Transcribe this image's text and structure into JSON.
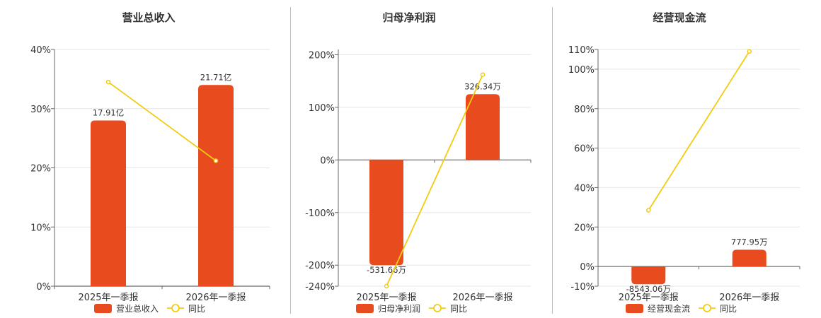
{
  "colors": {
    "bar": "#e84c1e",
    "line": "#f2cc12",
    "grid": "#e6e6e6",
    "axis": "#666666"
  },
  "chart_data": [
    {
      "type": "bar",
      "title": "营业总收入",
      "categories": [
        "2025年一季报",
        "2026年一季报"
      ],
      "series": [
        {
          "name": "营业总收入",
          "kind": "bar",
          "axis": "left",
          "values": [
            28,
            34
          ],
          "labels": [
            "17.91亿",
            "21.71亿"
          ]
        },
        {
          "name": "同比",
          "kind": "line",
          "axis": "left",
          "values": [
            34.5,
            21.2
          ]
        }
      ],
      "ylim": [
        0,
        40
      ],
      "yticks": [
        "0%",
        "10%",
        "20%",
        "30%",
        "40%"
      ],
      "yticks_values": [
        0,
        10,
        20,
        30,
        40
      ],
      "grid": true,
      "legend": [
        "营业总收入",
        "同比"
      ]
    },
    {
      "type": "bar",
      "title": "归母净利润",
      "categories": [
        "2025年一季报",
        "2026年一季报"
      ],
      "series": [
        {
          "name": "归母净利润",
          "kind": "bar",
          "axis": "left",
          "values": [
            -200,
            125
          ],
          "labels": [
            "-531.66万",
            "326.34万"
          ]
        },
        {
          "name": "同比",
          "kind": "line",
          "axis": "left",
          "values": [
            -240,
            162
          ]
        }
      ],
      "ylim": [
        -240,
        210
      ],
      "yticks": [
        "-240%",
        "-200%",
        "-100%",
        "0%",
        "100%",
        "200%"
      ],
      "yticks_values": [
        -240,
        -200,
        -100,
        0,
        100,
        200
      ],
      "grid": true,
      "legend": [
        "归母净利润",
        "同比"
      ]
    },
    {
      "type": "bar",
      "title": "经营现金流",
      "categories": [
        "2025年一季报",
        "2026年一季报"
      ],
      "series": [
        {
          "name": "经营现金流",
          "kind": "bar",
          "axis": "left",
          "values": [
            -9,
            8.5
          ],
          "labels": [
            "-8543.06万",
            "777.95万"
          ]
        },
        {
          "name": "同比",
          "kind": "line",
          "axis": "left",
          "values": [
            28.5,
            109
          ]
        }
      ],
      "ylim": [
        -10,
        110
      ],
      "yticks": [
        "-10%",
        "0%",
        "20%",
        "40%",
        "60%",
        "80%",
        "100%",
        "110%"
      ],
      "yticks_values": [
        -10,
        0,
        20,
        40,
        60,
        80,
        100,
        110
      ],
      "grid": true,
      "legend": [
        "经营现金流",
        "同比"
      ]
    }
  ]
}
